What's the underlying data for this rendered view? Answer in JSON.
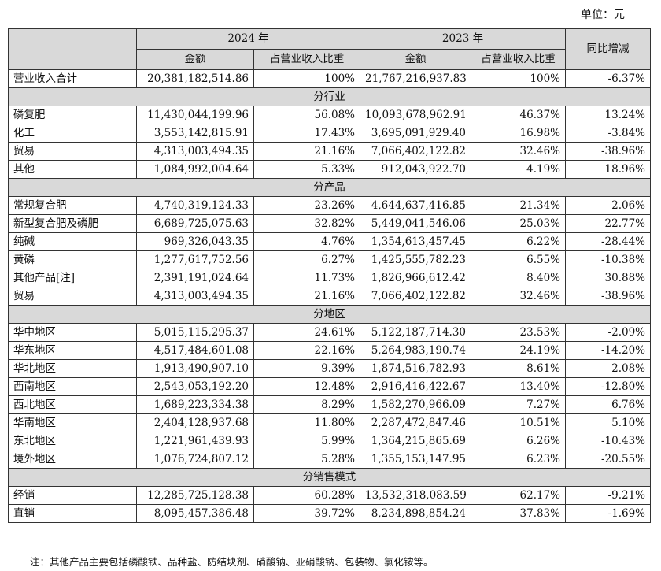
{
  "unit": "单位：元",
  "header": {
    "year2024": "2024 年",
    "year2023": "2023 年",
    "yoy": "同比增减",
    "amount": "金额",
    "share": "占营业收入比重"
  },
  "total": {
    "label": "营业收入合计",
    "a24": "20,381,182,514.86",
    "s24": "100%",
    "a23": "21,767,216,937.83",
    "s23": "100%",
    "yoy": "-6.37%"
  },
  "sections": [
    {
      "title": "分行业",
      "rows": [
        {
          "label": "磷复肥",
          "a24": "11,430,044,199.96",
          "s24": "56.08%",
          "a23": "10,093,678,962.91",
          "s23": "46.37%",
          "yoy": "13.24%"
        },
        {
          "label": "化工",
          "a24": "3,553,142,815.91",
          "s24": "17.43%",
          "a23": "3,695,091,929.40",
          "s23": "16.98%",
          "yoy": "-3.84%"
        },
        {
          "label": "贸易",
          "a24": "4,313,003,494.35",
          "s24": "21.16%",
          "a23": "7,066,402,122.82",
          "s23": "32.46%",
          "yoy": "-38.96%"
        },
        {
          "label": "其他",
          "a24": "1,084,992,004.64",
          "s24": "5.33%",
          "a23": "912,043,922.70",
          "s23": "4.19%",
          "yoy": "18.96%"
        }
      ]
    },
    {
      "title": "分产品",
      "rows": [
        {
          "label": "常规复合肥",
          "a24": "4,740,319,124.33",
          "s24": "23.26%",
          "a23": "4,644,637,416.85",
          "s23": "21.34%",
          "yoy": "2.06%"
        },
        {
          "label": "新型复合肥及磷肥",
          "a24": "6,689,725,075.63",
          "s24": "32.82%",
          "a23": "5,449,041,546.06",
          "s23": "25.03%",
          "yoy": "22.77%"
        },
        {
          "label": "纯碱",
          "a24": "969,326,043.35",
          "s24": "4.76%",
          "a23": "1,354,613,457.45",
          "s23": "6.22%",
          "yoy": "-28.44%"
        },
        {
          "label": "黄磷",
          "a24": "1,277,617,752.56",
          "s24": "6.27%",
          "a23": "1,425,555,782.23",
          "s23": "6.55%",
          "yoy": "-10.38%"
        },
        {
          "label": "其他产品[注]",
          "a24": "2,391,191,024.64",
          "s24": "11.73%",
          "a23": "1,826,966,612.42",
          "s23": "8.40%",
          "yoy": "30.88%"
        },
        {
          "label": "贸易",
          "a24": "4,313,003,494.35",
          "s24": "21.16%",
          "a23": "7,066,402,122.82",
          "s23": "32.46%",
          "yoy": "-38.96%"
        }
      ]
    },
    {
      "title": "分地区",
      "rows": [
        {
          "label": "华中地区",
          "a24": "5,015,115,295.37",
          "s24": "24.61%",
          "a23": "5,122,187,714.30",
          "s23": "23.53%",
          "yoy": "-2.09%"
        },
        {
          "label": "华东地区",
          "a24": "4,517,484,601.08",
          "s24": "22.16%",
          "a23": "5,264,983,190.74",
          "s23": "24.19%",
          "yoy": "-14.20%"
        },
        {
          "label": "华北地区",
          "a24": "1,913,490,907.10",
          "s24": "9.39%",
          "a23": "1,874,516,782.93",
          "s23": "8.61%",
          "yoy": "2.08%"
        },
        {
          "label": "西南地区",
          "a24": "2,543,053,192.20",
          "s24": "12.48%",
          "a23": "2,916,416,422.67",
          "s23": "13.40%",
          "yoy": "-12.80%"
        },
        {
          "label": "西北地区",
          "a24": "1,689,223,334.38",
          "s24": "8.29%",
          "a23": "1,582,270,966.09",
          "s23": "7.27%",
          "yoy": "6.76%"
        },
        {
          "label": "华南地区",
          "a24": "2,404,128,937.68",
          "s24": "11.80%",
          "a23": "2,287,472,847.46",
          "s23": "10.51%",
          "yoy": "5.10%"
        },
        {
          "label": "东北地区",
          "a24": "1,221,961,439.93",
          "s24": "5.99%",
          "a23": "1,364,215,865.69",
          "s23": "6.26%",
          "yoy": "-10.43%"
        },
        {
          "label": "境外地区",
          "a24": "1,076,724,807.12",
          "s24": "5.28%",
          "a23": "1,355,153,147.95",
          "s23": "6.23%",
          "yoy": "-20.55%"
        }
      ]
    },
    {
      "title": "分销售模式",
      "rows": [
        {
          "label": "经销",
          "a24": "12,285,725,128.38",
          "s24": "60.28%",
          "a23": "13,532,318,083.59",
          "s23": "62.17%",
          "yoy": "-9.21%"
        },
        {
          "label": "直销",
          "a24": "8,095,457,386.48",
          "s24": "39.72%",
          "a23": "8,234,898,854.24",
          "s23": "37.83%",
          "yoy": "-1.69%"
        }
      ]
    }
  ],
  "note": "注：其他产品主要包括磷酸铁、品种盐、防结块剂、硝酸钠、亚硝酸钠、包装物、氯化铵等。",
  "colors": {
    "header_bg": "#d9d9d9",
    "border": "#333333"
  }
}
